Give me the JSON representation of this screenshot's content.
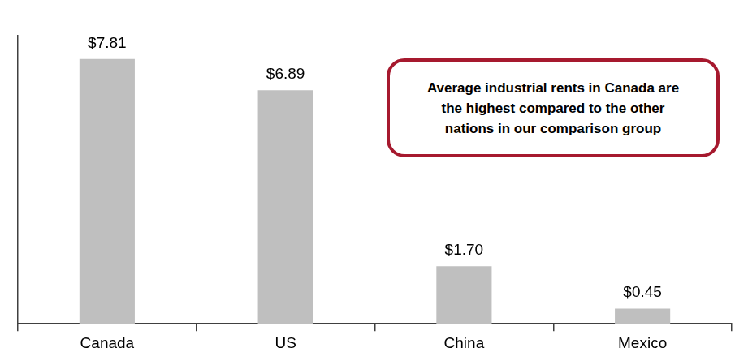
{
  "chart_data": {
    "type": "bar",
    "categories": [
      "Canada",
      "US",
      "China",
      "Mexico"
    ],
    "values": [
      7.81,
      6.89,
      1.7,
      0.45
    ],
    "value_labels": [
      "$7.81",
      "$6.89",
      "$1.70",
      "$0.45"
    ],
    "data_labels": true,
    "color": "#bfbfbf",
    "ylim": [
      0,
      8.5
    ],
    "tick_labels": "x",
    "grid": false,
    "annotation": [
      "Average industrial rents in Canada are",
      "the highest compared to the other",
      "nations in our comparison group"
    ]
  }
}
